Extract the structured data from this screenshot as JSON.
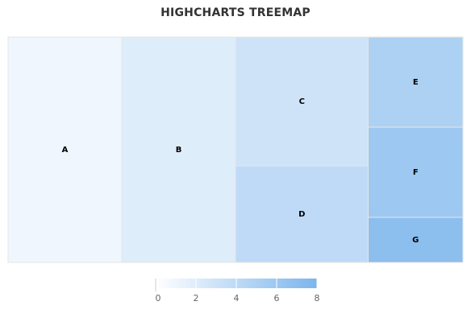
{
  "chart_data": {
    "type": "treemap",
    "title": "HIGHCHARTS TREEMAP",
    "layout_algorithm": "squarified",
    "color_axis": {
      "min": 0,
      "max": 8,
      "min_color": "#FFFFFF",
      "max_color": "#7CB5EC",
      "ticks": [
        "0",
        "2",
        "4",
        "6",
        "8"
      ]
    },
    "points": [
      {
        "name": "A",
        "value": 6,
        "colorValue": 1
      },
      {
        "name": "B",
        "value": 6,
        "colorValue": 2
      },
      {
        "name": "C",
        "value": 4,
        "colorValue": 3
      },
      {
        "name": "D",
        "value": 3,
        "colorValue": 4
      },
      {
        "name": "E",
        "value": 2,
        "colorValue": 5
      },
      {
        "name": "F",
        "value": 2,
        "colorValue": 6
      },
      {
        "name": "G",
        "value": 1,
        "colorValue": 7
      }
    ]
  }
}
